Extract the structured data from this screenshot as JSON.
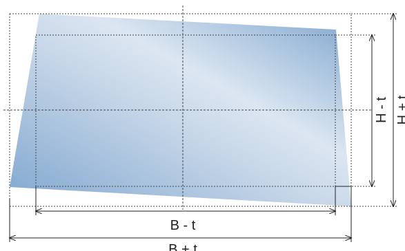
{
  "diagram": {
    "labels": {
      "width_inner": "B - t",
      "width_outer": "B + t",
      "height_inner": "H - t",
      "height_outer": "H + t"
    },
    "colors": {
      "glass_edge": "#7fa6cf",
      "glass_mid": "#dbe6f1",
      "line": "#222222",
      "guide": "#444444"
    }
  }
}
